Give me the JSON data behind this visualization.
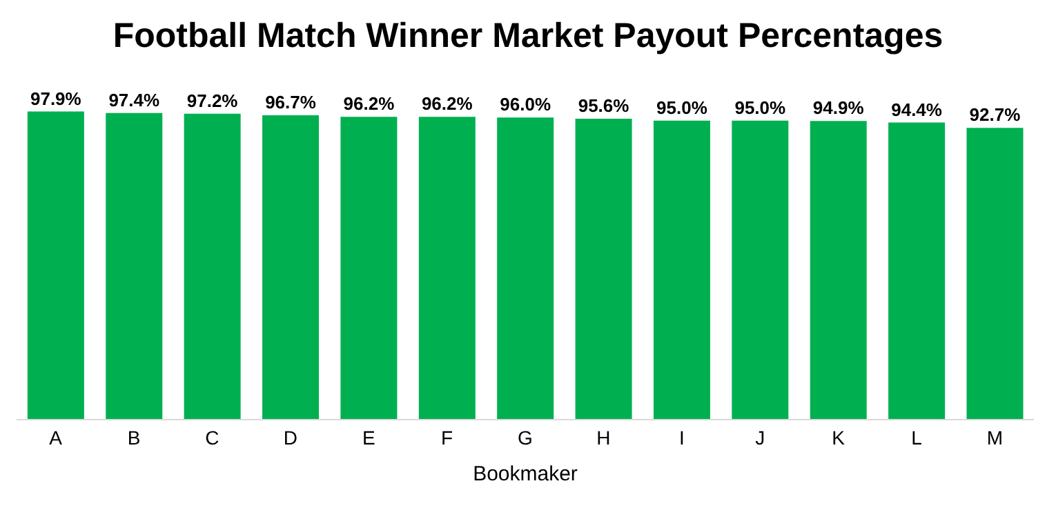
{
  "chart_data": {
    "type": "bar",
    "title": "Football Match Winner Market Payout Percentages",
    "xlabel": "Bookmaker",
    "categories": [
      "A",
      "B",
      "C",
      "D",
      "E",
      "F",
      "G",
      "H",
      "I",
      "J",
      "K",
      "L",
      "M"
    ],
    "values": [
      97.9,
      97.4,
      97.2,
      96.7,
      96.2,
      96.2,
      96.0,
      95.6,
      95.0,
      95.0,
      94.9,
      94.4,
      92.7
    ],
    "value_labels": [
      "97.9%",
      "97.4%",
      "97.2%",
      "96.7%",
      "96.2%",
      "96.2%",
      "96.0%",
      "95.6%",
      "95.0%",
      "95.0%",
      "94.9%",
      "94.4%",
      "92.7%"
    ],
    "color": "#00b050",
    "tick_labels": "x"
  }
}
